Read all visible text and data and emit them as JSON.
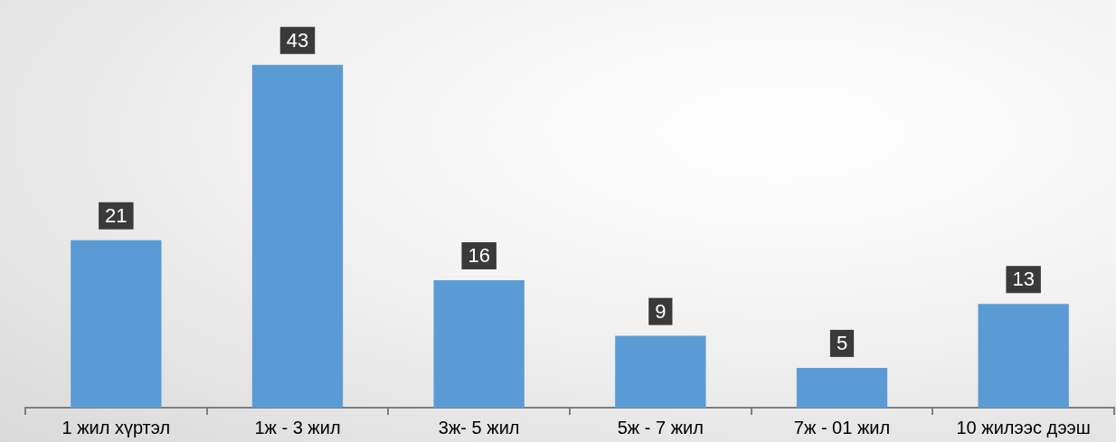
{
  "chart_data": {
    "type": "bar",
    "categories": [
      "1 жил хүртэл",
      "1ж - 3 жил",
      "3ж- 5 жил",
      "5ж - 7 жил",
      "7ж - 01 жил",
      "10 жилээс дээш"
    ],
    "values": [
      21,
      43,
      16,
      9,
      5,
      13
    ],
    "color": "#5b9bd5",
    "data_labels": true,
    "grid": false,
    "legend": false
  }
}
